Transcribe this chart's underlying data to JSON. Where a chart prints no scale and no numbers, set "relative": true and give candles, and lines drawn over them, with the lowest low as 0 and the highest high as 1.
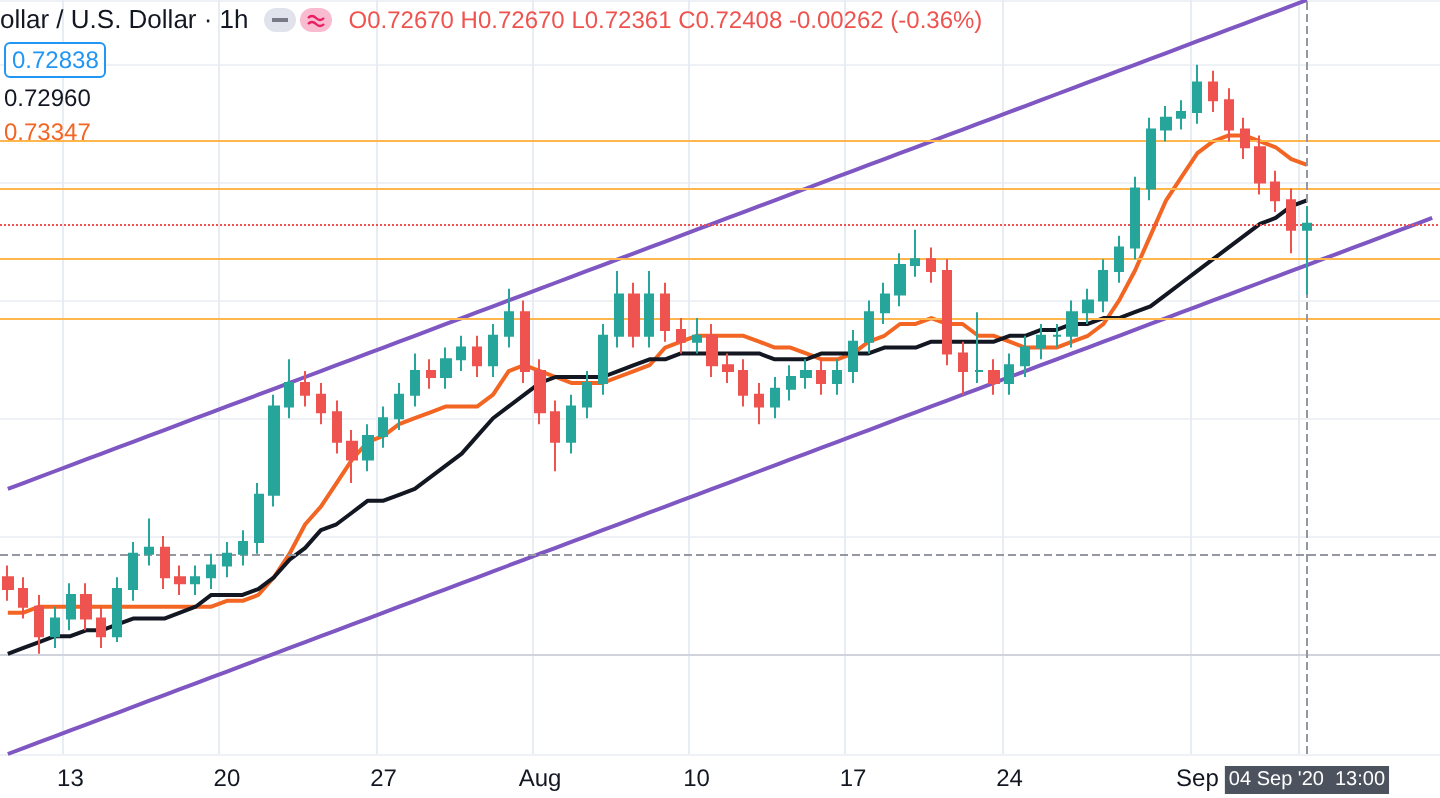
{
  "chart_data": {
    "type": "candlestick",
    "relative": true,
    "title": "ollar / U.S. Dollar · 1h",
    "subtitle": "O0.72670 H0.72670 L0.72361 C0.72408 -0.00262 (-0.36%)",
    "annotations": [
      "0.72838",
      "0.72960",
      "0.73347"
    ],
    "categories": [
      null,
      null,
      null,
      null,
      "13",
      null,
      null,
      null,
      null,
      null,
      null,
      null,
      null,
      null,
      "20",
      null,
      null,
      null,
      null,
      null,
      null,
      null,
      null,
      null,
      "27",
      null,
      null,
      null,
      null,
      null,
      null,
      null,
      null,
      null,
      "Aug",
      null,
      null,
      null,
      null,
      null,
      null,
      null,
      null,
      null,
      "10",
      null,
      null,
      null,
      null,
      null,
      null,
      null,
      null,
      null,
      "17",
      null,
      null,
      null,
      null,
      null,
      null,
      null,
      null,
      null,
      "24",
      null,
      null,
      null,
      null,
      null,
      null,
      null,
      null,
      null,
      null,
      null,
      "Sep",
      null,
      null,
      null,
      null,
      null,
      null,
      "04 Sep '20  13:00",
      null,
      null,
      null,
      null,
      null,
      null,
      null,
      null
    ],
    "ohlc": [
      [
        0.13,
        0.15,
        0.09,
        0.11
      ],
      [
        0.11,
        0.13,
        0.06,
        0.08
      ],
      [
        0.08,
        0.1,
        0,
        0.03
      ],
      [
        0.03,
        0.08,
        0.01,
        0.06
      ],
      [
        0.06,
        0.12,
        0.04,
        0.1
      ],
      [
        0.1,
        0.12,
        0.04,
        0.06
      ],
      [
        0.06,
        0.08,
        0.01,
        0.03
      ],
      [
        0.03,
        0.13,
        0.02,
        0.11
      ],
      [
        0.11,
        0.19,
        0.09,
        0.17
      ],
      [
        0.17,
        0.23,
        0.15,
        0.18
      ],
      [
        0.18,
        0.2,
        0.11,
        0.13
      ],
      [
        0.13,
        0.15,
        0.1,
        0.12
      ],
      [
        0.12,
        0.15,
        0.1,
        0.13
      ],
      [
        0.13,
        0.17,
        0.11,
        0.15
      ],
      [
        0.15,
        0.19,
        0.13,
        0.17
      ],
      [
        0.17,
        0.21,
        0.15,
        0.19
      ],
      [
        0.19,
        0.29,
        0.17,
        0.27
      ],
      [
        0.27,
        0.44,
        0.25,
        0.42
      ],
      [
        0.42,
        0.5,
        0.4,
        0.46
      ],
      [
        0.46,
        0.48,
        0.42,
        0.44
      ],
      [
        0.44,
        0.46,
        0.39,
        0.41
      ],
      [
        0.41,
        0.43,
        0.34,
        0.36
      ],
      [
        0.36,
        0.38,
        0.29,
        0.33
      ],
      [
        0.33,
        0.39,
        0.31,
        0.37
      ],
      [
        0.37,
        0.42,
        0.35,
        0.4
      ],
      [
        0.4,
        0.46,
        0.38,
        0.44
      ],
      [
        0.44,
        0.51,
        0.42,
        0.48
      ],
      [
        0.48,
        0.5,
        0.45,
        0.47
      ],
      [
        0.47,
        0.52,
        0.45,
        0.5
      ],
      [
        0.5,
        0.54,
        0.48,
        0.52
      ],
      [
        0.52,
        0.54,
        0.47,
        0.49
      ],
      [
        0.49,
        0.56,
        0.47,
        0.54
      ],
      [
        0.54,
        0.62,
        0.52,
        0.58
      ],
      [
        0.58,
        0.6,
        0.46,
        0.48
      ],
      [
        0.48,
        0.5,
        0.39,
        0.41
      ],
      [
        0.41,
        0.43,
        0.31,
        0.36
      ],
      [
        0.36,
        0.44,
        0.34,
        0.42
      ],
      [
        0.42,
        0.48,
        0.4,
        0.46
      ],
      [
        0.46,
        0.56,
        0.44,
        0.54
      ],
      [
        0.54,
        0.65,
        0.52,
        0.61
      ],
      [
        0.61,
        0.63,
        0.52,
        0.54
      ],
      [
        0.54,
        0.65,
        0.52,
        0.61
      ],
      [
        0.61,
        0.63,
        0.53,
        0.55
      ],
      [
        0.55,
        0.57,
        0.51,
        0.53
      ],
      [
        0.53,
        0.57,
        0.51,
        0.54
      ],
      [
        0.54,
        0.56,
        0.47,
        0.49
      ],
      [
        0.49,
        0.51,
        0.46,
        0.48
      ],
      [
        0.48,
        0.5,
        0.42,
        0.44
      ],
      [
        0.44,
        0.46,
        0.39,
        0.42
      ],
      [
        0.42,
        0.47,
        0.4,
        0.45
      ],
      [
        0.45,
        0.49,
        0.43,
        0.47
      ],
      [
        0.47,
        0.5,
        0.45,
        0.48
      ],
      [
        0.48,
        0.5,
        0.44,
        0.46
      ],
      [
        0.46,
        0.5,
        0.44,
        0.48
      ],
      [
        0.48,
        0.55,
        0.46,
        0.53
      ],
      [
        0.53,
        0.6,
        0.51,
        0.58
      ],
      [
        0.58,
        0.63,
        0.56,
        0.61
      ],
      [
        0.61,
        0.68,
        0.59,
        0.66
      ],
      [
        0.66,
        0.72,
        0.64,
        0.67
      ],
      [
        0.67,
        0.69,
        0.63,
        0.65
      ],
      [
        0.65,
        0.67,
        0.49,
        0.51
      ],
      [
        0.51,
        0.53,
        0.44,
        0.48
      ],
      [
        0.48,
        0.58,
        0.46,
        0.48
      ],
      [
        0.48,
        0.5,
        0.44,
        0.46
      ],
      [
        0.46,
        0.51,
        0.44,
        0.49
      ],
      [
        0.49,
        0.54,
        0.47,
        0.52
      ],
      [
        0.52,
        0.56,
        0.5,
        0.54
      ],
      [
        0.54,
        0.56,
        0.52,
        0.54
      ],
      [
        0.54,
        0.6,
        0.52,
        0.58
      ],
      [
        0.58,
        0.62,
        0.56,
        0.6
      ],
      [
        0.6,
        0.67,
        0.58,
        0.65
      ],
      [
        0.65,
        0.71,
        0.63,
        0.69
      ],
      [
        0.69,
        0.81,
        0.67,
        0.79
      ],
      [
        0.79,
        0.91,
        0.77,
        0.89
      ],
      [
        0.89,
        0.93,
        0.87,
        0.91
      ],
      [
        0.91,
        0.94,
        0.89,
        0.92
      ],
      [
        0.92,
        1,
        0.9,
        0.97
      ],
      [
        0.97,
        0.99,
        0.92,
        0.94
      ],
      [
        0.94,
        0.96,
        0.87,
        0.89
      ],
      [
        0.89,
        0.91,
        0.84,
        0.86
      ],
      [
        0.86,
        0.88,
        0.78,
        0.8
      ],
      [
        0.8,
        0.82,
        0.75,
        0.77
      ],
      [
        0.77,
        0.79,
        0.68,
        0.72
      ],
      [
        0.72,
        0.76,
        0.61,
        0.73
      ],
      null,
      null,
      null,
      null,
      null,
      null,
      null,
      null
    ],
    "colors": [
      "#ef5350",
      "#ef5350",
      "#ef5350",
      "#26a69a",
      "#26a69a",
      "#ef5350",
      "#ef5350",
      "#26a69a",
      "#26a69a",
      "#26a69a",
      "#ef5350",
      "#ef5350",
      "#26a69a",
      "#26a69a",
      "#26a69a",
      "#26a69a",
      "#26a69a",
      "#26a69a",
      "#26a69a",
      "#ef5350",
      "#ef5350",
      "#ef5350",
      "#ef5350",
      "#26a69a",
      "#26a69a",
      "#26a69a",
      "#26a69a",
      "#ef5350",
      "#26a69a",
      "#26a69a",
      "#ef5350",
      "#26a69a",
      "#26a69a",
      "#ef5350",
      "#ef5350",
      "#ef5350",
      "#26a69a",
      "#26a69a",
      "#26a69a",
      "#26a69a",
      "#ef5350",
      "#26a69a",
      "#ef5350",
      "#ef5350",
      "#26a69a",
      "#ef5350",
      "#ef5350",
      "#ef5350",
      "#ef5350",
      "#26a69a",
      "#26a69a",
      "#26a69a",
      "#ef5350",
      "#26a69a",
      "#26a69a",
      "#26a69a",
      "#26a69a",
      "#26a69a",
      "#26a69a",
      "#ef5350",
      "#ef5350",
      "#ef5350",
      "#26a69a",
      "#ef5350",
      "#26a69a",
      "#26a69a",
      "#26a69a",
      "#26a69a",
      "#26a69a",
      "#26a69a",
      "#26a69a",
      "#26a69a",
      "#26a69a",
      "#26a69a",
      "#26a69a",
      "#26a69a",
      "#26a69a",
      "#ef5350",
      "#ef5350",
      "#ef5350",
      "#ef5350",
      "#ef5350",
      "#ef5350",
      "#26a69a",
      null,
      null,
      null,
      null,
      null,
      null,
      null,
      null
    ],
    "series": [
      {
        "type": "line",
        "color": "#f26522",
        "values": [
          0.07,
          0.07,
          0.08,
          0.08,
          0.08,
          0.08,
          0.08,
          0.08,
          0.08,
          0.08,
          0.08,
          0.08,
          0.08,
          0.08,
          0.09,
          0.09,
          0.1,
          0.13,
          0.17,
          0.22,
          0.25,
          0.29,
          0.33,
          0.36,
          0.37,
          0.39,
          0.4,
          0.41,
          0.42,
          0.42,
          0.42,
          0.44,
          0.48,
          0.49,
          0.48,
          0.47,
          0.46,
          0.46,
          0.46,
          0.47,
          0.48,
          0.49,
          0.52,
          0.53,
          0.54,
          0.54,
          0.54,
          0.54,
          0.53,
          0.52,
          0.52,
          0.51,
          0.5,
          0.5,
          0.51,
          0.53,
          0.54,
          0.56,
          0.56,
          0.57,
          0.56,
          0.56,
          0.54,
          0.54,
          0.53,
          0.52,
          0.52,
          0.52,
          0.53,
          0.54,
          0.56,
          0.6,
          0.65,
          0.71,
          0.77,
          0.81,
          0.85,
          0.87,
          0.88,
          0.88,
          0.87,
          0.86,
          0.84,
          0.83,
          null,
          null,
          null,
          null,
          null,
          null,
          null,
          null
        ]
      },
      {
        "type": "line",
        "color": "#131722",
        "values": [
          0.0,
          0.01,
          0.02,
          0.03,
          0.03,
          0.04,
          0.04,
          0.05,
          0.06,
          0.06,
          0.06,
          0.07,
          0.08,
          0.1,
          0.1,
          0.1,
          0.11,
          0.13,
          0.16,
          0.18,
          0.21,
          0.22,
          0.24,
          0.26,
          0.26,
          0.27,
          0.28,
          0.3,
          0.32,
          0.34,
          0.37,
          0.4,
          0.42,
          0.44,
          0.46,
          0.47,
          0.47,
          0.47,
          0.47,
          0.48,
          0.49,
          0.5,
          0.5,
          0.51,
          0.51,
          0.51,
          0.51,
          0.51,
          0.51,
          0.5,
          0.5,
          0.5,
          0.51,
          0.51,
          0.51,
          0.51,
          0.52,
          0.52,
          0.52,
          0.53,
          0.53,
          0.53,
          0.53,
          0.53,
          0.54,
          0.54,
          0.55,
          0.55,
          0.56,
          0.56,
          0.57,
          0.57,
          0.58,
          0.59,
          0.61,
          0.63,
          0.65,
          0.67,
          0.69,
          0.71,
          0.73,
          0.74,
          0.76,
          0.77,
          null,
          null,
          null,
          null,
          null,
          null,
          null,
          null
        ]
      },
      {
        "type": "line",
        "color": "#7e57c2",
        "values": [
          0.28,
          0.29,
          0.3,
          0.31,
          0.32,
          0.33,
          0.34,
          0.35,
          0.36,
          0.37,
          0.38,
          0.39,
          0.4,
          0.41,
          0.42,
          0.43,
          0.44,
          0.45,
          0.46,
          0.47,
          0.48,
          0.49,
          0.5,
          0.51,
          0.52,
          0.53,
          0.54,
          0.55,
          0.56,
          0.57,
          0.58,
          0.59,
          0.6,
          0.61,
          0.62,
          0.63,
          0.64,
          0.65,
          0.66,
          0.67,
          0.68,
          0.69,
          0.7,
          0.71,
          0.72,
          0.73,
          0.74,
          0.75,
          0.76,
          0.77,
          0.78,
          0.79,
          0.8,
          0.81,
          0.82,
          0.83,
          0.84,
          0.85,
          0.86,
          0.87,
          0.88,
          0.89,
          0.9,
          0.91,
          0.92,
          0.93,
          0.94,
          0.95,
          0.96,
          0.97,
          0.98,
          0.99,
          1.0,
          1.01,
          1.02,
          1.03,
          1.04,
          1.05,
          1.06,
          1.07,
          1.08,
          1.09,
          1.1,
          1.11,
          null,
          null,
          null,
          null,
          null,
          null,
          null,
          null
        ]
      },
      {
        "type": "line",
        "color": "#7e57c2",
        "values": [
          -0.17,
          -0.16,
          -0.15,
          -0.14,
          -0.13,
          -0.12,
          -0.11,
          -0.1,
          -0.09,
          -0.08,
          -0.07,
          -0.06,
          -0.05,
          -0.04,
          -0.03,
          -0.02,
          -0.01,
          0.0,
          0.01,
          0.02,
          0.03,
          0.04,
          0.05,
          0.06,
          0.07,
          0.08,
          0.09,
          0.1,
          0.11,
          0.12,
          0.13,
          0.14,
          0.15,
          0.16,
          0.17,
          0.18,
          0.19,
          0.2,
          0.21,
          0.22,
          0.23,
          0.24,
          0.25,
          0.26,
          0.27,
          0.28,
          0.29,
          0.3,
          0.31,
          0.32,
          0.33,
          0.34,
          0.35,
          0.36,
          0.37,
          0.38,
          0.39,
          0.4,
          0.41,
          0.42,
          0.43,
          0.44,
          0.45,
          0.46,
          0.47,
          0.48,
          0.49,
          0.5,
          0.51,
          0.52,
          0.53,
          0.54,
          0.55,
          0.56,
          0.57,
          0.58,
          0.59,
          0.6,
          0.61,
          0.62,
          0.63,
          0.64,
          0.65,
          0.66,
          0.67,
          0.68,
          0.69,
          0.7,
          0.71,
          0.72,
          0.73,
          0.74
        ]
      }
    ],
    "ref_lines": [
      {
        "axis": "y",
        "value": 0.87,
        "color": "#ffb74d",
        "line_style": "solid"
      },
      {
        "axis": "y",
        "value": 0.79,
        "color": "#ffb74d",
        "line_style": "solid"
      },
      {
        "axis": "y",
        "value": 0.67,
        "color": "#ffb74d",
        "line_style": "solid"
      },
      {
        "axis": "y",
        "value": 0.57,
        "color": "#ffb74d",
        "line_style": "solid"
      },
      {
        "axis": "y",
        "value": 0.73,
        "color": "#ef5350",
        "line_style": "dotted"
      },
      {
        "axis": "y",
        "value": 0.17,
        "color": "#9598a1",
        "line_style": "dashed"
      },
      {
        "axis": "x",
        "value": "04 Sep '20  13:00",
        "color": "#9598a1",
        "line_style": "dashed"
      }
    ],
    "grid": true
  }
}
